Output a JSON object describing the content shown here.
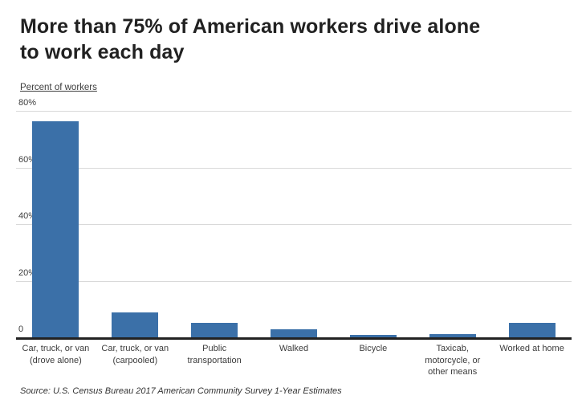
{
  "header": {
    "title": "More than 75% of American workers drive alone\nto work each day"
  },
  "axis_note": "Percent of workers",
  "source": {
    "text": "Source: U.S. Census Bureau 2017 American Community Survey 1-Year Estimates"
  },
  "colors": {
    "bar": "#3b70a8",
    "gridline": "#d9d9d9",
    "axis": "#222222",
    "title_text": "#212121",
    "tick_text": "#3c3c3c",
    "source_text": "#333333"
  },
  "chart_data": {
    "type": "bar",
    "title": "More than 75% of American workers drive alone to work each day",
    "categories": [
      "Car, truck, or van\n(drove alone)",
      "Car, truck, or van\n(carpooled)",
      "Public\ntransportation",
      "Walked",
      "Bicycle",
      "Taxicab,\nmotorcycle, or\nother means",
      "Worked at home"
    ],
    "values": [
      76.4,
      8.9,
      5.0,
      2.7,
      0.5,
      1.2,
      5.2
    ],
    "xlabel": "",
    "ylabel": "Percent of workers",
    "ylim": [
      0,
      80
    ],
    "yticks": [
      {
        "value": 0,
        "label": "0"
      },
      {
        "value": 20,
        "label": "20%"
      },
      {
        "value": 40,
        "label": "40%"
      },
      {
        "value": 60,
        "label": "60%"
      },
      {
        "value": 80,
        "label": "80%"
      }
    ],
    "grid": true,
    "legend": false
  }
}
